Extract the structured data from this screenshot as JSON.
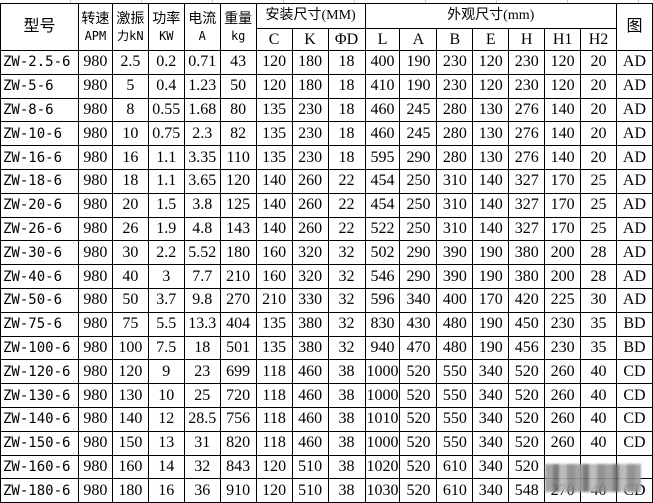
{
  "header": {
    "model": "型号",
    "speed": [
      "转速",
      "APM"
    ],
    "force": [
      "激振",
      "力kN"
    ],
    "power": [
      "功率",
      "KW"
    ],
    "current": [
      "电流",
      "A"
    ],
    "weight": [
      "重量",
      "kg"
    ],
    "install_group": "安装尺寸(MM)",
    "outline_group": "外观尺寸(mm)",
    "figure": "图",
    "install_cols": [
      "C",
      "K",
      "ΦD"
    ],
    "outline_cols": [
      "L",
      "A",
      "B",
      "E",
      "H",
      "H1",
      "H2"
    ]
  },
  "rows": [
    [
      "ZW-2.5-6",
      "980",
      "2.5",
      "0.2",
      "0.71",
      "43",
      "120",
      "180",
      "18",
      "400",
      "190",
      "230",
      "120",
      "230",
      "120",
      "20",
      "AD"
    ],
    [
      "ZW-5-6",
      "980",
      "5",
      "0.4",
      "1.23",
      "50",
      "120",
      "180",
      "18",
      "410",
      "190",
      "230",
      "120",
      "230",
      "120",
      "20",
      "AD"
    ],
    [
      "ZW-8-6",
      "980",
      "8",
      "0.55",
      "1.68",
      "80",
      "135",
      "230",
      "18",
      "460",
      "245",
      "280",
      "130",
      "276",
      "140",
      "20",
      "AD"
    ],
    [
      "ZW-10-6",
      "980",
      "10",
      "0.75",
      "2.3",
      "82",
      "135",
      "230",
      "18",
      "460",
      "245",
      "280",
      "130",
      "276",
      "140",
      "20",
      "AD"
    ],
    [
      "ZW-16-6",
      "980",
      "16",
      "1.1",
      "3.35",
      "110",
      "135",
      "230",
      "18",
      "595",
      "290",
      "280",
      "130",
      "276",
      "140",
      "20",
      "AD"
    ],
    [
      "ZW-18-6",
      "980",
      "18",
      "1.1",
      "3.65",
      "120",
      "140",
      "260",
      "22",
      "454",
      "250",
      "310",
      "140",
      "327",
      "170",
      "25",
      "AD"
    ],
    [
      "ZW-20-6",
      "980",
      "20",
      "1.5",
      "3.8",
      "125",
      "140",
      "260",
      "22",
      "454",
      "250",
      "310",
      "140",
      "327",
      "170",
      "25",
      "AD"
    ],
    [
      "ZW-26-6",
      "980",
      "26",
      "1.9",
      "4.8",
      "143",
      "140",
      "260",
      "22",
      "522",
      "250",
      "310",
      "140",
      "327",
      "170",
      "25",
      "AD"
    ],
    [
      "ZW-30-6",
      "980",
      "30",
      "2.2",
      "5.52",
      "180",
      "160",
      "320",
      "32",
      "502",
      "290",
      "390",
      "190",
      "380",
      "200",
      "28",
      "AD"
    ],
    [
      "ZW-40-6",
      "980",
      "40",
      "3",
      "7.7",
      "210",
      "160",
      "320",
      "32",
      "546",
      "290",
      "390",
      "190",
      "380",
      "200",
      "28",
      "AD"
    ],
    [
      "ZW-50-6",
      "980",
      "50",
      "3.7",
      "9.8",
      "270",
      "210",
      "330",
      "32",
      "596",
      "340",
      "400",
      "170",
      "420",
      "225",
      "30",
      "AD"
    ],
    [
      "ZW-75-6",
      "980",
      "75",
      "5.5",
      "13.3",
      "404",
      "135",
      "380",
      "32",
      "830",
      "430",
      "480",
      "190",
      "450",
      "230",
      "35",
      "BD"
    ],
    [
      "ZW-100-6",
      "980",
      "100",
      "7.5",
      "18",
      "501",
      "135",
      "380",
      "32",
      "940",
      "470",
      "480",
      "190",
      "456",
      "230",
      "35",
      "BD"
    ],
    [
      "ZW-120-6",
      "980",
      "120",
      "9",
      "23",
      "699",
      "118",
      "460",
      "38",
      "1000",
      "520",
      "550",
      "340",
      "520",
      "260",
      "40",
      "CD"
    ],
    [
      "ZW-130-6",
      "980",
      "130",
      "10",
      "25",
      "720",
      "118",
      "460",
      "38",
      "1000",
      "520",
      "550",
      "340",
      "520",
      "260",
      "40",
      "CD"
    ],
    [
      "ZW-140-6",
      "980",
      "140",
      "12",
      "28.5",
      "756",
      "118",
      "460",
      "38",
      "1010",
      "520",
      "550",
      "340",
      "520",
      "260",
      "40",
      "CD"
    ],
    [
      "ZW-150-6",
      "980",
      "150",
      "13",
      "31",
      "820",
      "118",
      "460",
      "38",
      "1000",
      "520",
      "550",
      "340",
      "520",
      "260",
      "40",
      "CD"
    ],
    [
      "ZW-160-6",
      "980",
      "160",
      "14",
      "32",
      "843",
      "120",
      "510",
      "38",
      "1020",
      "520",
      "610",
      "340",
      "520",
      "",
      "",
      ""
    ],
    [
      "ZW-180-6",
      "980",
      "180",
      "16",
      "36",
      "910",
      "120",
      "510",
      "38",
      "1030",
      "520",
      "610",
      "340",
      "548",
      "270",
      "40",
      "CD"
    ]
  ]
}
